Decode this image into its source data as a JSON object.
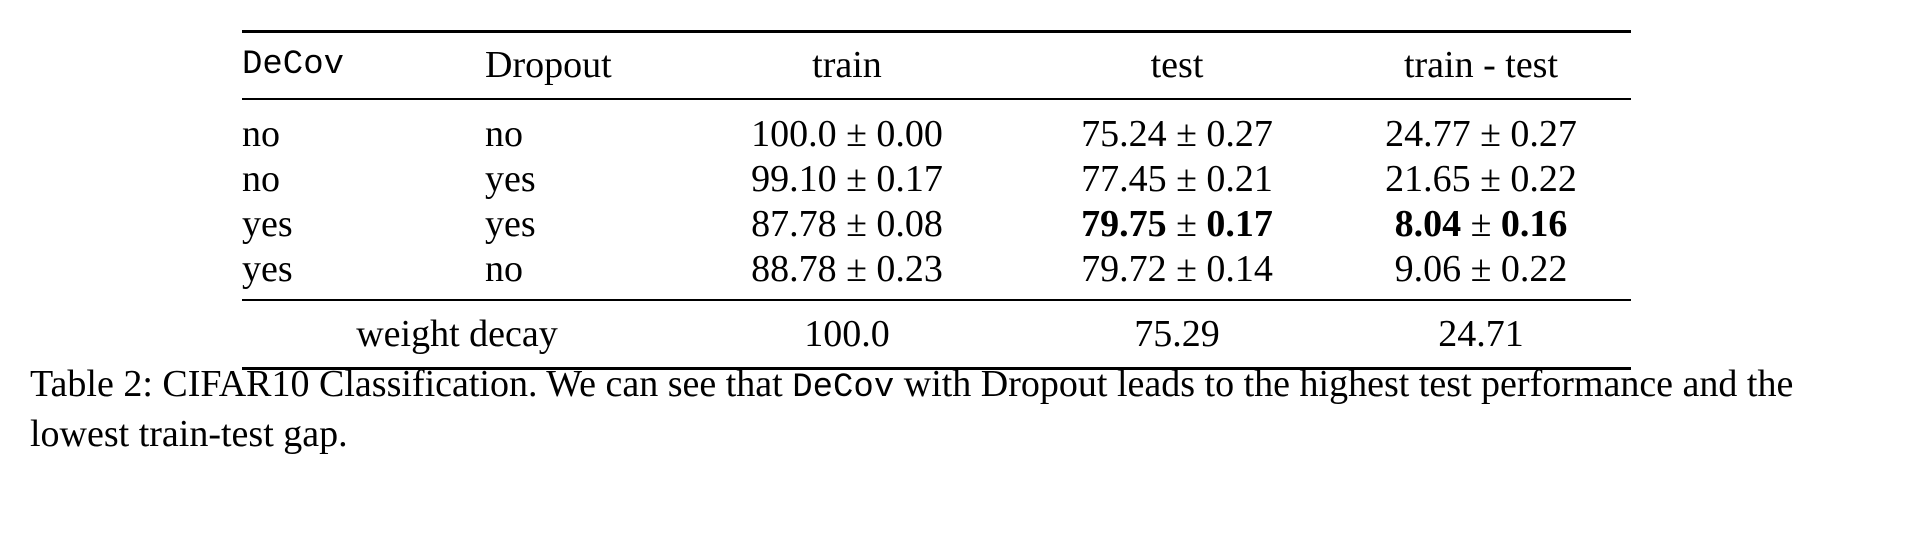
{
  "table": {
    "headers": [
      "DeCov",
      "Dropout",
      "train",
      "test",
      "train - test"
    ],
    "rows": [
      {
        "decov": "no",
        "dropout": "no",
        "train": {
          "mean": "100.0",
          "pm": "±",
          "std": "0.00"
        },
        "test": {
          "mean": "75.24",
          "pm": "±",
          "std": "0.27"
        },
        "gap": {
          "mean": "24.77",
          "pm": "±",
          "std": "0.27"
        }
      },
      {
        "decov": "no",
        "dropout": "yes",
        "train": {
          "mean": "99.10",
          "pm": "±",
          "std": "0.17"
        },
        "test": {
          "mean": "77.45",
          "pm": "±",
          "std": "0.21"
        },
        "gap": {
          "mean": "21.65",
          "pm": "±",
          "std": "0.22"
        }
      },
      {
        "decov": "yes",
        "dropout": "yes",
        "train": {
          "mean": "87.78",
          "pm": "±",
          "std": "0.08"
        },
        "test": {
          "mean": "79.75",
          "pm": "±",
          "std": "0.17"
        },
        "gap": {
          "mean": "8.04",
          "pm": "±",
          "std": "0.16"
        }
      },
      {
        "decov": "yes",
        "dropout": "no",
        "train": {
          "mean": "88.78",
          "pm": "±",
          "std": "0.23"
        },
        "test": {
          "mean": "79.72",
          "pm": "±",
          "std": "0.14"
        },
        "gap": {
          "mean": "9.06",
          "pm": "±",
          "std": "0.22"
        }
      }
    ],
    "weight_decay": {
      "label": "weight decay",
      "train": "100.0",
      "test": "75.29",
      "gap": "24.71"
    }
  },
  "caption": {
    "prefix": "Table 2: CIFAR10 Classification. We can see that ",
    "code": "DeCov",
    "suffix": " with Dropout leads to the highest test performance and the lowest train-test gap."
  }
}
